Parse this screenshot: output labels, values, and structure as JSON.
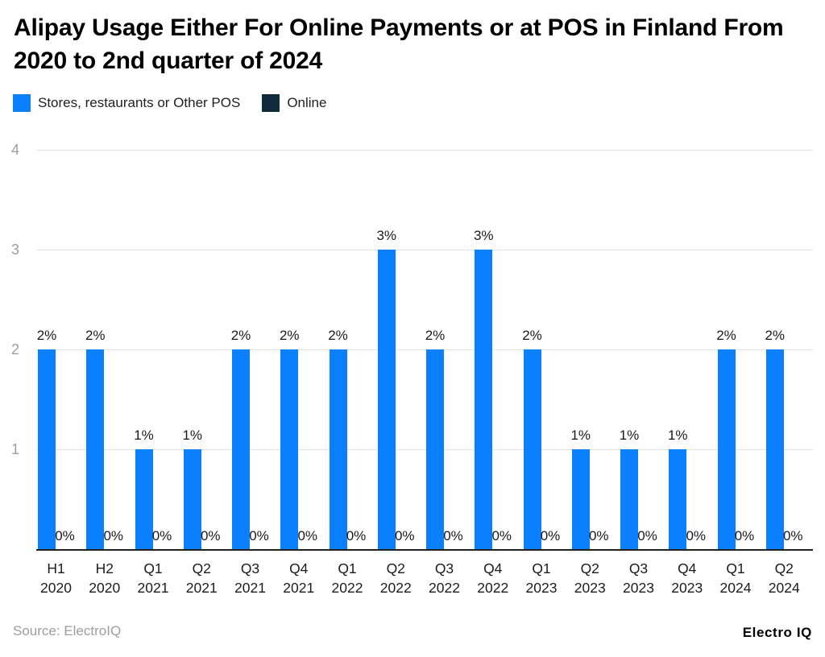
{
  "header": {
    "title": "Alipay Usage Either For Online Payments or at POS in Finland From 2020 to 2nd quarter of 2024"
  },
  "legend": {
    "items": [
      {
        "label": "Stores, restaurants or Other POS",
        "color": "#0b80ff"
      },
      {
        "label": "Online",
        "color": "#0f2b3d"
      }
    ]
  },
  "footer": {
    "source": "Source: ElectroIQ",
    "brand": "Electro IQ"
  },
  "chart_data": {
    "type": "bar",
    "title": "Alipay Usage Either For Online Payments or at POS in Finland From 2020 to 2nd quarter of 2024",
    "categories": [
      "H1 2020",
      "H2 2020",
      "Q1 2021",
      "Q2 2021",
      "Q3 2021",
      "Q4 2021",
      "Q1 2022",
      "Q2 2022",
      "Q3 2022",
      "Q4 2022",
      "Q1 2023",
      "Q2 2023",
      "Q3 2023",
      "Q4 2023",
      "Q1 2024",
      "Q2 2024"
    ],
    "series": [
      {
        "name": "Stores, restaurants or Other POS",
        "color": "#0b80ff",
        "values": [
          2,
          2,
          1,
          1,
          2,
          2,
          2,
          3,
          2,
          3,
          2,
          1,
          1,
          1,
          2,
          2
        ],
        "labels": [
          "2%",
          "2%",
          "1%",
          "1%",
          "2%",
          "2%",
          "2%",
          "3%",
          "2%",
          "3%",
          "2%",
          "1%",
          "1%",
          "1%",
          "2%",
          "2%"
        ]
      },
      {
        "name": "Online",
        "color": "#0f2b3d",
        "values": [
          0,
          0,
          0,
          0,
          0,
          0,
          0,
          0,
          0,
          0,
          0,
          0,
          0,
          0,
          0,
          0
        ],
        "labels": [
          "0%",
          "0%",
          "0%",
          "0%",
          "0%",
          "0%",
          "0%",
          "0%",
          "0%",
          "0%",
          "0%",
          "0%",
          "0%",
          "0%",
          "0%",
          "0%"
        ]
      }
    ],
    "xlabel": "",
    "ylabel": "",
    "ylim": [
      0,
      4
    ],
    "yticks": [
      1,
      2,
      3,
      4
    ],
    "grid": "horizontal",
    "legend_position": "top-left",
    "colors": {
      "gridline": "#e3e3e3",
      "axis_line": "#212121",
      "ytick_text": "#9e9e9e",
      "label_text": "#1a1a1a"
    }
  }
}
